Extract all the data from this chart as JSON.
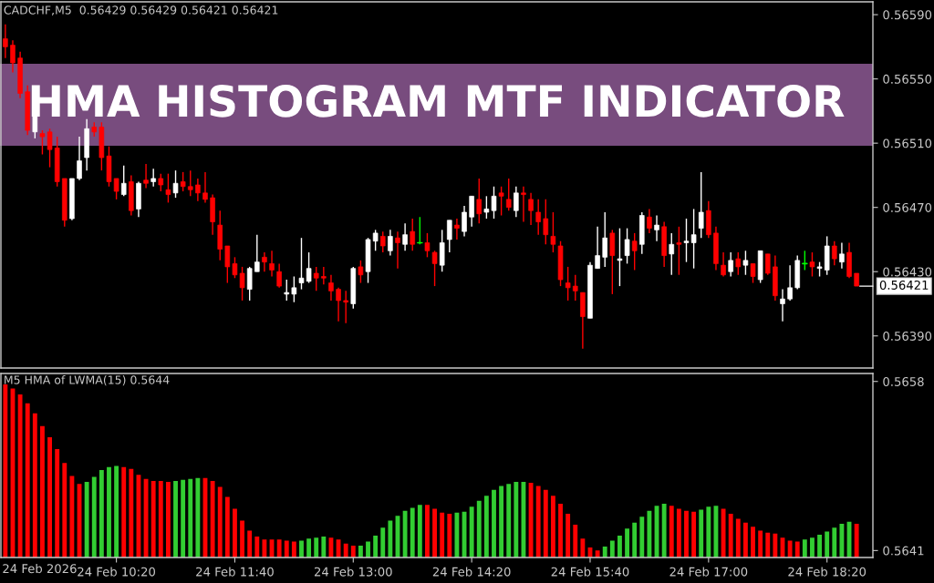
{
  "chart_data": [
    {
      "type": "candlestick",
      "title": "HMA HISTOGRAM MTF INDICATOR",
      "annotations": [
        "CADCHF,M5  0.56429 0.56429 0.56421 0.56421"
      ],
      "x": [
        "2026-02-24T09:05",
        "2026-02-24T09:10",
        "2026-02-24T09:15",
        "2026-02-24T09:20",
        "2026-02-24T09:25",
        "2026-02-24T09:30",
        "2026-02-24T09:35",
        "2026-02-24T09:40",
        "2026-02-24T09:45",
        "2026-02-24T09:50",
        "2026-02-24T09:55",
        "2026-02-24T10:00",
        "2026-02-24T10:05",
        "2026-02-24T10:10",
        "2026-02-24T10:15",
        "2026-02-24T10:20",
        "2026-02-24T10:25",
        "2026-02-24T10:30",
        "2026-02-24T10:35",
        "2026-02-24T10:40",
        "2026-02-24T10:45",
        "2026-02-24T10:50",
        "2026-02-24T10:55",
        "2026-02-24T11:00",
        "2026-02-24T11:05",
        "2026-02-24T11:10",
        "2026-02-24T11:15",
        "2026-02-24T11:20",
        "2026-02-24T11:25",
        "2026-02-24T11:30",
        "2026-02-24T11:35",
        "2026-02-24T11:40",
        "2026-02-24T11:45",
        "2026-02-24T11:50",
        "2026-02-24T11:55",
        "2026-02-24T12:00",
        "2026-02-24T12:05",
        "2026-02-24T12:10",
        "2026-02-24T12:15",
        "2026-02-24T12:20",
        "2026-02-24T12:25",
        "2026-02-24T12:30",
        "2026-02-24T12:35",
        "2026-02-24T12:40",
        "2026-02-24T12:45",
        "2026-02-24T12:50",
        "2026-02-24T12:55",
        "2026-02-24T13:00",
        "2026-02-24T13:05",
        "2026-02-24T13:10",
        "2026-02-24T13:15",
        "2026-02-24T13:20",
        "2026-02-24T13:25",
        "2026-02-24T13:30",
        "2026-02-24T13:35",
        "2026-02-24T13:40",
        "2026-02-24T13:45",
        "2026-02-24T13:50",
        "2026-02-24T13:55",
        "2026-02-24T14:00",
        "2026-02-24T14:05",
        "2026-02-24T14:10",
        "2026-02-24T14:15",
        "2026-02-24T14:20",
        "2026-02-24T14:25",
        "2026-02-24T14:30",
        "2026-02-24T14:35",
        "2026-02-24T14:40",
        "2026-02-24T14:45",
        "2026-02-24T14:50",
        "2026-02-24T14:55",
        "2026-02-24T15:00",
        "2026-02-24T15:05",
        "2026-02-24T15:10",
        "2026-02-24T15:15",
        "2026-02-24T15:20",
        "2026-02-24T15:25",
        "2026-02-24T15:30",
        "2026-02-24T15:35",
        "2026-02-24T15:40",
        "2026-02-24T15:45",
        "2026-02-24T15:50",
        "2026-02-24T15:55",
        "2026-02-24T16:00",
        "2026-02-24T16:05",
        "2026-02-24T16:10",
        "2026-02-24T16:15",
        "2026-02-24T16:20",
        "2026-02-24T16:25",
        "2026-02-24T16:30",
        "2026-02-24T16:35",
        "2026-02-24T16:40",
        "2026-02-24T16:45",
        "2026-02-24T16:50",
        "2026-02-24T16:55",
        "2026-02-24T17:00",
        "2026-02-24T17:05",
        "2026-02-24T17:10",
        "2026-02-24T17:15",
        "2026-02-24T17:20",
        "2026-02-24T17:25",
        "2026-02-24T17:30",
        "2026-02-24T17:35",
        "2026-02-24T17:40",
        "2026-02-24T17:45",
        "2026-02-24T17:50",
        "2026-02-24T17:55",
        "2026-02-24T18:00",
        "2026-02-24T18:05",
        "2026-02-24T18:10",
        "2026-02-24T18:15",
        "2026-02-24T18:20",
        "2026-02-24T18:25",
        "2026-02-24T18:30",
        "2026-02-24T18:35",
        "2026-02-24T18:40"
      ],
      "ohlc": [
        [
          0.56575,
          0.56584,
          0.56563,
          0.5657
        ],
        [
          0.56571,
          0.56574,
          0.56554,
          0.5656
        ],
        [
          0.56563,
          0.56567,
          0.56538,
          0.56541
        ],
        [
          0.56542,
          0.56546,
          0.56515,
          0.56518
        ],
        [
          0.56517,
          0.56538,
          0.56513,
          0.56528
        ],
        [
          0.56516,
          0.56518,
          0.56503,
          0.56514
        ],
        [
          0.56517,
          0.56519,
          0.56495,
          0.56506
        ],
        [
          0.56507,
          0.56514,
          0.56483,
          0.56486
        ],
        [
          0.56488,
          0.56488,
          0.56458,
          0.56462
        ],
        [
          0.56463,
          0.56488,
          0.56462,
          0.56488
        ],
        [
          0.56488,
          0.56514,
          0.56487,
          0.56499
        ],
        [
          0.56501,
          0.56525,
          0.56493,
          0.56519
        ],
        [
          0.5652,
          0.56523,
          0.56514,
          0.56517
        ],
        [
          0.5652,
          0.56523,
          0.56493,
          0.56501
        ],
        [
          0.56502,
          0.56508,
          0.56483,
          0.56486
        ],
        [
          0.56488,
          0.56488,
          0.56475,
          0.5648
        ],
        [
          0.56478,
          0.56496,
          0.56477,
          0.56485
        ],
        [
          0.56486,
          0.5649,
          0.56465,
          0.56468
        ],
        [
          0.56469,
          0.56486,
          0.56464,
          0.56485
        ],
        [
          0.56487,
          0.56497,
          0.56482,
          0.56485
        ],
        [
          0.56486,
          0.56494,
          0.56483,
          0.56488
        ],
        [
          0.56488,
          0.56491,
          0.5648,
          0.56484
        ],
        [
          0.56481,
          0.56491,
          0.56473,
          0.56478
        ],
        [
          0.56479,
          0.56493,
          0.56476,
          0.56485
        ],
        [
          0.56486,
          0.56492,
          0.5648,
          0.56483
        ],
        [
          0.56483,
          0.56493,
          0.56477,
          0.56481
        ],
        [
          0.56484,
          0.56488,
          0.56474,
          0.56479
        ],
        [
          0.56479,
          0.56492,
          0.56473,
          0.56475
        ],
        [
          0.56476,
          0.56478,
          0.56453,
          0.56461
        ],
        [
          0.56459,
          0.56468,
          0.56437,
          0.56444
        ],
        [
          0.56446,
          0.56446,
          0.56423,
          0.56433
        ],
        [
          0.56435,
          0.56439,
          0.56426,
          0.56428
        ],
        [
          0.56429,
          0.56433,
          0.56412,
          0.5642
        ],
        [
          0.56419,
          0.56433,
          0.56412,
          0.56432
        ],
        [
          0.5643,
          0.56453,
          0.5643,
          0.56436
        ],
        [
          0.56439,
          0.56442,
          0.5643,
          0.56436
        ],
        [
          0.56435,
          0.56443,
          0.56427,
          0.56431
        ],
        [
          0.5643,
          0.56435,
          0.5642,
          0.56421
        ],
        [
          0.56416,
          0.56425,
          0.56412,
          0.56417
        ],
        [
          0.56416,
          0.56427,
          0.56411,
          0.5642
        ],
        [
          0.56423,
          0.56451,
          0.56419,
          0.56426
        ],
        [
          0.56424,
          0.56442,
          0.56423,
          0.56432
        ],
        [
          0.56429,
          0.56433,
          0.56418,
          0.56426
        ],
        [
          0.56427,
          0.56433,
          0.56422,
          0.56426
        ],
        [
          0.56423,
          0.56428,
          0.56412,
          0.56418
        ],
        [
          0.56419,
          0.5642,
          0.56399,
          0.56412
        ],
        [
          0.56412,
          0.56418,
          0.56398,
          0.56411
        ],
        [
          0.5641,
          0.56433,
          0.56407,
          0.56432
        ],
        [
          0.56433,
          0.56437,
          0.56423,
          0.56428
        ],
        [
          0.5643,
          0.56451,
          0.56423,
          0.5645
        ],
        [
          0.56449,
          0.56456,
          0.56443,
          0.56454
        ],
        [
          0.56452,
          0.56455,
          0.56442,
          0.56446
        ],
        [
          0.56443,
          0.56456,
          0.5644,
          0.56452
        ],
        [
          0.56451,
          0.56455,
          0.56432,
          0.56448
        ],
        [
          0.56447,
          0.5646,
          0.56443,
          0.56453
        ],
        [
          0.56455,
          0.56463,
          0.56443,
          0.56447
        ],
        [
          0.56448,
          0.56464,
          0.56447,
          0.56448
        ],
        [
          0.56448,
          0.56454,
          0.56439,
          0.56443
        ],
        [
          0.56442,
          0.56443,
          0.56421,
          0.56435
        ],
        [
          0.56434,
          0.56456,
          0.5643,
          0.56448
        ],
        [
          0.5645,
          0.56462,
          0.56442,
          0.56462
        ],
        [
          0.56459,
          0.56463,
          0.5645,
          0.56457
        ],
        [
          0.56455,
          0.56471,
          0.56452,
          0.56467
        ],
        [
          0.56464,
          0.56477,
          0.56458,
          0.56477
        ],
        [
          0.56475,
          0.56488,
          0.5646,
          0.56466
        ],
        [
          0.56467,
          0.56477,
          0.56463,
          0.56469
        ],
        [
          0.56468,
          0.56483,
          0.56463,
          0.56477
        ],
        [
          0.56479,
          0.56483,
          0.56465,
          0.56477
        ],
        [
          0.56475,
          0.56488,
          0.56468,
          0.5647
        ],
        [
          0.56468,
          0.56483,
          0.56464,
          0.56479
        ],
        [
          0.56479,
          0.56483,
          0.56461,
          0.56478
        ],
        [
          0.56475,
          0.56479,
          0.56459,
          0.56468
        ],
        [
          0.56467,
          0.56475,
          0.56453,
          0.56461
        ],
        [
          0.56463,
          0.56475,
          0.56447,
          0.56453
        ],
        [
          0.56452,
          0.56467,
          0.56442,
          0.56447
        ],
        [
          0.56446,
          0.56449,
          0.56421,
          0.56425
        ],
        [
          0.56423,
          0.56433,
          0.56412,
          0.5642
        ],
        [
          0.56421,
          0.56428,
          0.56412,
          0.56418
        ],
        [
          0.56417,
          0.56417,
          0.56382,
          0.56402
        ],
        [
          0.56401,
          0.56436,
          0.56401,
          0.56434
        ],
        [
          0.56432,
          0.56458,
          0.56432,
          0.5644
        ],
        [
          0.56439,
          0.56467,
          0.56433,
          0.56451
        ],
        [
          0.56454,
          0.56456,
          0.56416,
          0.5644
        ],
        [
          0.56437,
          0.56457,
          0.56421,
          0.56438
        ],
        [
          0.5644,
          0.56457,
          0.56435,
          0.5645
        ],
        [
          0.56449,
          0.56454,
          0.56431,
          0.56443
        ],
        [
          0.56447,
          0.56467,
          0.56441,
          0.56465
        ],
        [
          0.56464,
          0.56469,
          0.56454,
          0.56457
        ],
        [
          0.56456,
          0.56465,
          0.56449,
          0.56459
        ],
        [
          0.56458,
          0.56461,
          0.56433,
          0.5644
        ],
        [
          0.56441,
          0.56454,
          0.56428,
          0.56447
        ],
        [
          0.56448,
          0.56458,
          0.56428,
          0.56447
        ],
        [
          0.56448,
          0.56463,
          0.56436,
          0.56449
        ],
        [
          0.56448,
          0.56469,
          0.56432,
          0.56453
        ],
        [
          0.56457,
          0.56492,
          0.56451,
          0.56467
        ],
        [
          0.56468,
          0.56474,
          0.56451,
          0.56453
        ],
        [
          0.56454,
          0.56458,
          0.56431,
          0.56435
        ],
        [
          0.56434,
          0.56442,
          0.56427,
          0.56428
        ],
        [
          0.5643,
          0.56442,
          0.56427,
          0.56437
        ],
        [
          0.56438,
          0.56442,
          0.56428,
          0.56433
        ],
        [
          0.56434,
          0.56443,
          0.56428,
          0.56437
        ],
        [
          0.56435,
          0.56435,
          0.56423,
          0.56427
        ],
        [
          0.56425,
          0.56443,
          0.56423,
          0.56443
        ],
        [
          0.56441,
          0.56441,
          0.56428,
          0.56429
        ],
        [
          0.56433,
          0.5644,
          0.56412,
          0.56415
        ],
        [
          0.5641,
          0.56419,
          0.56399,
          0.56413
        ],
        [
          0.56413,
          0.56434,
          0.56412,
          0.5642
        ],
        [
          0.5642,
          0.5644,
          0.56419,
          0.56437
        ],
        [
          0.56435,
          0.56443,
          0.56431,
          0.56435
        ],
        [
          0.56436,
          0.56442,
          0.56427,
          0.56433
        ],
        [
          0.56432,
          0.56436,
          0.56427,
          0.56433
        ],
        [
          0.56431,
          0.56452,
          0.56428,
          0.56446
        ],
        [
          0.56446,
          0.56449,
          0.56434,
          0.56438
        ],
        [
          0.56436,
          0.56448,
          0.56432,
          0.56441
        ],
        [
          0.56442,
          0.56448,
          0.56426,
          0.56427
        ],
        [
          0.56429,
          0.56429,
          0.56421,
          0.56421
        ]
      ],
      "colors": [
        "#ff0000",
        "#ff0000",
        "#ff0000",
        "#ff0000",
        "#ffffff",
        "#ff0000",
        "#ff0000",
        "#ff0000",
        "#ff0000",
        "#ffffff",
        "#ffffff",
        "#ffffff",
        "#ff0000",
        "#ff0000",
        "#ff0000",
        "#ff0000",
        "#ffffff",
        "#ff0000",
        "#ffffff",
        "#ff0000",
        "#ffffff",
        "#ff0000",
        "#ff0000",
        "#ffffff",
        "#ff0000",
        "#ff0000",
        "#ff0000",
        "#ff0000",
        "#ff0000",
        "#ff0000",
        "#ff0000",
        "#ff0000",
        "#ff0000",
        "#ffffff",
        "#ffffff",
        "#ff0000",
        "#ff0000",
        "#ff0000",
        "#ffffff",
        "#ffffff",
        "#ffffff",
        "#ffffff",
        "#ff0000",
        "#ff0000",
        "#ff0000",
        "#ff0000",
        "#ff0000",
        "#ffffff",
        "#ff0000",
        "#ffffff",
        "#ffffff",
        "#ff0000",
        "#ffffff",
        "#ff0000",
        "#ffffff",
        "#ff0000",
        "#00ff00",
        "#ff0000",
        "#ff0000",
        "#ffffff",
        "#ffffff",
        "#ff0000",
        "#ffffff",
        "#ffffff",
        "#ff0000",
        "#ffffff",
        "#ffffff",
        "#ff0000",
        "#ff0000",
        "#ffffff",
        "#ff0000",
        "#ff0000",
        "#ff0000",
        "#ff0000",
        "#ff0000",
        "#ff0000",
        "#ff0000",
        "#ff0000",
        "#ff0000",
        "#ffffff",
        "#ffffff",
        "#ffffff",
        "#ff0000",
        "#ffffff",
        "#ffffff",
        "#ff0000",
        "#ffffff",
        "#ff0000",
        "#ffffff",
        "#ff0000",
        "#ffffff",
        "#ff0000",
        "#ffffff",
        "#ffffff",
        "#ffffff",
        "#ff0000",
        "#ff0000",
        "#ff0000",
        "#ffffff",
        "#ff0000",
        "#ffffff",
        "#ff0000",
        "#ffffff",
        "#ff0000",
        "#ff0000",
        "#ffffff",
        "#ffffff",
        "#ffffff",
        "#00ff00",
        "#ff0000",
        "#ffffff",
        "#ffffff",
        "#ff0000",
        "#ffffff",
        "#ff0000",
        "#ff0000"
      ],
      "xlim": [
        "2026-02-24T09:02",
        "2026-02-24T18:51"
      ],
      "ylim": [
        0.5637,
        0.56598
      ],
      "yticks": [
        {
          "value": 0.5659,
          "label": "0.56590"
        },
        {
          "value": 0.5655,
          "label": "0.56550"
        },
        {
          "value": 0.5651,
          "label": "0.56510"
        },
        {
          "value": 0.5647,
          "label": "0.56470"
        },
        {
          "value": 0.5643,
          "label": "0.56430"
        },
        {
          "value": 0.5639,
          "label": "0.56390"
        }
      ],
      "ref_lines": [
        {
          "axis": "y",
          "value": 0.56421,
          "label": "0.56421",
          "color": "#ffffff"
        }
      ],
      "tick_labels": "y"
    },
    {
      "type": "bar",
      "annotations": [
        "M5 HMA of LWMA(15) 0.5644",
        "24 Feb 2026"
      ],
      "x": [
        "2026-02-24T09:05",
        "2026-02-24T09:10",
        "2026-02-24T09:15",
        "2026-02-24T09:20",
        "2026-02-24T09:25",
        "2026-02-24T09:30",
        "2026-02-24T09:35",
        "2026-02-24T09:40",
        "2026-02-24T09:45",
        "2026-02-24T09:50",
        "2026-02-24T09:55",
        "2026-02-24T10:00",
        "2026-02-24T10:05",
        "2026-02-24T10:10",
        "2026-02-24T10:15",
        "2026-02-24T10:20",
        "2026-02-24T10:25",
        "2026-02-24T10:30",
        "2026-02-24T10:35",
        "2026-02-24T10:40",
        "2026-02-24T10:45",
        "2026-02-24T10:50",
        "2026-02-24T10:55",
        "2026-02-24T11:00",
        "2026-02-24T11:05",
        "2026-02-24T11:10",
        "2026-02-24T11:15",
        "2026-02-24T11:20",
        "2026-02-24T11:25",
        "2026-02-24T11:30",
        "2026-02-24T11:35",
        "2026-02-24T11:40",
        "2026-02-24T11:45",
        "2026-02-24T11:50",
        "2026-02-24T11:55",
        "2026-02-24T12:00",
        "2026-02-24T12:05",
        "2026-02-24T12:10",
        "2026-02-24T12:15",
        "2026-02-24T12:20",
        "2026-02-24T12:25",
        "2026-02-24T12:30",
        "2026-02-24T12:35",
        "2026-02-24T12:40",
        "2026-02-24T12:45",
        "2026-02-24T12:50",
        "2026-02-24T12:55",
        "2026-02-24T13:00",
        "2026-02-24T13:05",
        "2026-02-24T13:10",
        "2026-02-24T13:15",
        "2026-02-24T13:20",
        "2026-02-24T13:25",
        "2026-02-24T13:30",
        "2026-02-24T13:35",
        "2026-02-24T13:40",
        "2026-02-24T13:45",
        "2026-02-24T13:50",
        "2026-02-24T13:55",
        "2026-02-24T14:00",
        "2026-02-24T14:05",
        "2026-02-24T14:10",
        "2026-02-24T14:15",
        "2026-02-24T14:20",
        "2026-02-24T14:25",
        "2026-02-24T14:30",
        "2026-02-24T14:35",
        "2026-02-24T14:40",
        "2026-02-24T14:45",
        "2026-02-24T14:50",
        "2026-02-24T14:55",
        "2026-02-24T15:00",
        "2026-02-24T15:05",
        "2026-02-24T15:10",
        "2026-02-24T15:15",
        "2026-02-24T15:20",
        "2026-02-24T15:25",
        "2026-02-24T15:30",
        "2026-02-24T15:35",
        "2026-02-24T15:40",
        "2026-02-24T15:45",
        "2026-02-24T15:50",
        "2026-02-24T15:55",
        "2026-02-24T16:00",
        "2026-02-24T16:05",
        "2026-02-24T16:10",
        "2026-02-24T16:15",
        "2026-02-24T16:20",
        "2026-02-24T16:25",
        "2026-02-24T16:30",
        "2026-02-24T16:35",
        "2026-02-24T16:40",
        "2026-02-24T16:45",
        "2026-02-24T16:50",
        "2026-02-24T16:55",
        "2026-02-24T17:00",
        "2026-02-24T17:05",
        "2026-02-24T17:10",
        "2026-02-24T17:15",
        "2026-02-24T17:20",
        "2026-02-24T17:25",
        "2026-02-24T17:30",
        "2026-02-24T17:35",
        "2026-02-24T17:40",
        "2026-02-24T17:45",
        "2026-02-24T17:50",
        "2026-02-24T17:55",
        "2026-02-24T18:00",
        "2026-02-24T18:05",
        "2026-02-24T18:10",
        "2026-02-24T18:15",
        "2026-02-24T18:20",
        "2026-02-24T18:25",
        "2026-02-24T18:30",
        "2026-02-24T18:35",
        "2026-02-24T18:40"
      ],
      "values": [
        0.56577,
        0.56573,
        0.56567,
        0.56558,
        0.56548,
        0.56535,
        0.56524,
        0.56512,
        0.56498,
        0.56485,
        0.56477,
        0.56479,
        0.56484,
        0.56491,
        0.56494,
        0.56495,
        0.56494,
        0.56492,
        0.56486,
        0.56482,
        0.5648,
        0.5648,
        0.56479,
        0.5648,
        0.56481,
        0.56482,
        0.56483,
        0.56483,
        0.5648,
        0.56474,
        0.56464,
        0.56452,
        0.5644,
        0.5643,
        0.56424,
        0.56421,
        0.56421,
        0.56421,
        0.5642,
        0.56419,
        0.5642,
        0.56422,
        0.56423,
        0.56424,
        0.56423,
        0.56421,
        0.56417,
        0.56415,
        0.56415,
        0.56419,
        0.56425,
        0.56433,
        0.5644,
        0.56445,
        0.5645,
        0.56453,
        0.56456,
        0.56456,
        0.56452,
        0.56448,
        0.56447,
        0.56448,
        0.56449,
        0.56454,
        0.5646,
        0.56465,
        0.56471,
        0.56475,
        0.56477,
        0.56479,
        0.56479,
        0.56478,
        0.56475,
        0.56471,
        0.56465,
        0.56457,
        0.56447,
        0.56436,
        0.56422,
        0.56413,
        0.5641,
        0.56414,
        0.5642,
        0.56425,
        0.56432,
        0.56438,
        0.56444,
        0.5645,
        0.56455,
        0.56457,
        0.56455,
        0.56452,
        0.5645,
        0.56449,
        0.56451,
        0.56454,
        0.56455,
        0.56452,
        0.56447,
        0.56442,
        0.56438,
        0.56434,
        0.5643,
        0.56428,
        0.56427,
        0.56423,
        0.5642,
        0.56419,
        0.56421,
        0.56423,
        0.56426,
        0.56429,
        0.56433,
        0.56437,
        0.56439,
        0.56437
      ],
      "colors": [
        "#ff0000",
        "#ff0000",
        "#ff0000",
        "#ff0000",
        "#ff0000",
        "#ff0000",
        "#ff0000",
        "#ff0000",
        "#ff0000",
        "#ff0000",
        "#ff0000",
        "#32cd32",
        "#32cd32",
        "#32cd32",
        "#32cd32",
        "#32cd32",
        "#ff0000",
        "#ff0000",
        "#ff0000",
        "#ff0000",
        "#ff0000",
        "#ff0000",
        "#ff0000",
        "#32cd32",
        "#32cd32",
        "#32cd32",
        "#32cd32",
        "#ff0000",
        "#ff0000",
        "#ff0000",
        "#ff0000",
        "#ff0000",
        "#ff0000",
        "#ff0000",
        "#ff0000",
        "#ff0000",
        "#ff0000",
        "#ff0000",
        "#ff0000",
        "#ff0000",
        "#32cd32",
        "#32cd32",
        "#32cd32",
        "#32cd32",
        "#ff0000",
        "#ff0000",
        "#ff0000",
        "#ff0000",
        "#32cd32",
        "#32cd32",
        "#32cd32",
        "#32cd32",
        "#32cd32",
        "#32cd32",
        "#32cd32",
        "#32cd32",
        "#32cd32",
        "#ff0000",
        "#ff0000",
        "#ff0000",
        "#ff0000",
        "#32cd32",
        "#32cd32",
        "#32cd32",
        "#32cd32",
        "#32cd32",
        "#32cd32",
        "#32cd32",
        "#32cd32",
        "#32cd32",
        "#32cd32",
        "#ff0000",
        "#ff0000",
        "#ff0000",
        "#ff0000",
        "#ff0000",
        "#ff0000",
        "#ff0000",
        "#ff0000",
        "#ff0000",
        "#ff0000",
        "#32cd32",
        "#32cd32",
        "#32cd32",
        "#32cd32",
        "#32cd32",
        "#32cd32",
        "#32cd32",
        "#32cd32",
        "#32cd32",
        "#ff0000",
        "#ff0000",
        "#ff0000",
        "#ff0000",
        "#32cd32",
        "#32cd32",
        "#32cd32",
        "#ff0000",
        "#ff0000",
        "#ff0000",
        "#ff0000",
        "#ff0000",
        "#ff0000",
        "#ff0000",
        "#ff0000",
        "#ff0000",
        "#ff0000",
        "#ff0000",
        "#32cd32",
        "#32cd32",
        "#32cd32",
        "#32cd32",
        "#32cd32",
        "#32cd32",
        "#32cd32",
        "#ff0000"
      ],
      "xlim": [
        "2026-02-24T09:02",
        "2026-02-24T18:51"
      ],
      "xticks": [
        {
          "value": "2026-02-24T10:20",
          "label": "24 Feb 10:20"
        },
        {
          "value": "2026-02-24T11:40",
          "label": "24 Feb 11:40"
        },
        {
          "value": "2026-02-24T13:00",
          "label": "24 Feb 13:00"
        },
        {
          "value": "2026-02-24T14:20",
          "label": "24 Feb 14:20"
        },
        {
          "value": "2026-02-24T15:40",
          "label": "24 Feb 15:40"
        },
        {
          "value": "2026-02-24T17:00",
          "label": "24 Feb 17:00"
        },
        {
          "value": "2026-02-24T18:20",
          "label": "24 Feb 18:20"
        }
      ],
      "ylim": [
        0.56403,
        0.56588
      ],
      "yticks": [
        0.5658,
        0.5641
      ]
    }
  ]
}
